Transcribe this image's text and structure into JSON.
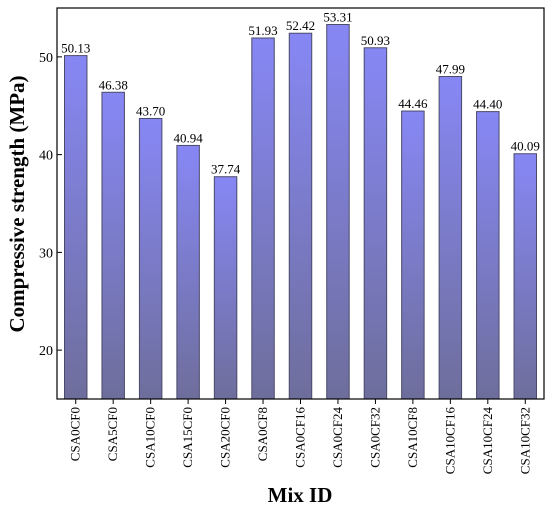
{
  "chart_data": {
    "type": "bar",
    "title": "",
    "xlabel": "Mix ID",
    "ylabel": "Compressive strength (MPa)",
    "categories": [
      "CSA0CF0",
      "CSA5CF0",
      "CSA10CF0",
      "CSA15CF0",
      "CSA20CF0",
      "CSA0CF8",
      "CSA0CF16",
      "CSA0CF24",
      "CSA0CF32",
      "CSA10CF8",
      "CSA10CF16",
      "CSA10CF24",
      "CSA10CF32"
    ],
    "values": [
      50.13,
      46.38,
      43.7,
      40.94,
      37.74,
      51.93,
      52.42,
      53.31,
      50.93,
      44.46,
      47.99,
      44.4,
      40.09
    ],
    "value_labels": [
      "50.13",
      "46.38",
      "43.70",
      "40.94",
      "37.74",
      "51.93",
      "52.42",
      "53.31",
      "50.93",
      "44.46",
      "47.99",
      "44.40",
      "40.09"
    ],
    "ylim": [
      15,
      55
    ],
    "yticks": [
      20,
      30,
      40,
      50
    ],
    "grid": false,
    "bar_gradient": {
      "top": "#8787f5",
      "bottom": "#6e6e9c"
    },
    "bar_edge_color": "#4a4a6a"
  }
}
